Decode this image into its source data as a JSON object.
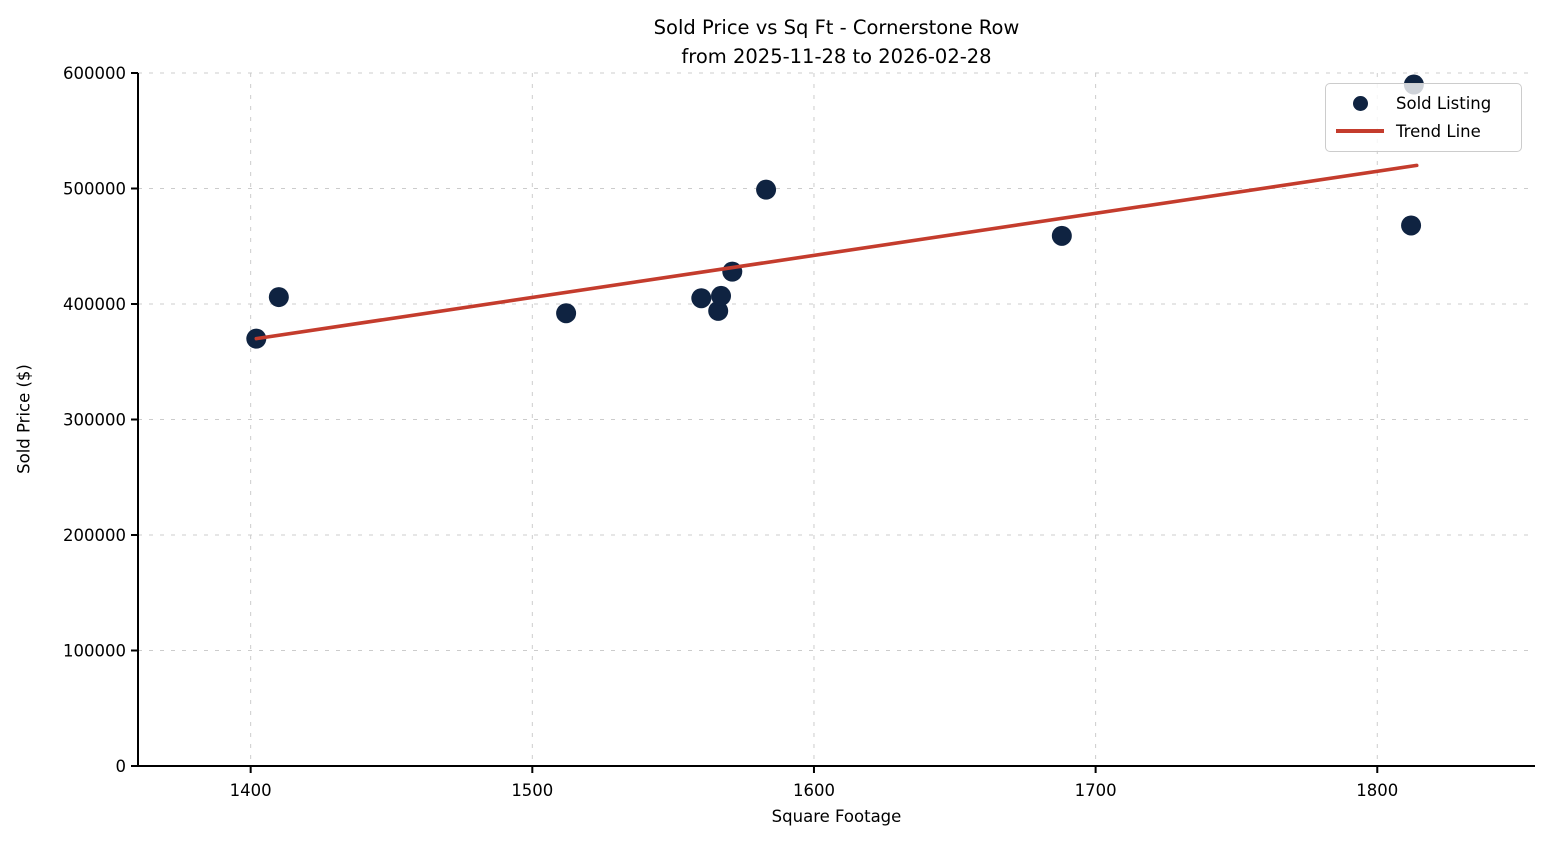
{
  "figure": {
    "title_line1": "Sold Price vs Sq Ft - Cornerstone Row",
    "title_line2": "from 2025-11-28 to 2026-02-28",
    "xlabel": "Square Footage",
    "ylabel": "Sold Price ($)"
  },
  "legend": {
    "position": "upper right",
    "items": [
      {
        "label": "Sold Listing",
        "swatch": "dot",
        "color": "#0f2341"
      },
      {
        "label": "Trend Line",
        "swatch": "line",
        "color": "#c43c2d"
      }
    ]
  },
  "chart_data": {
    "type": "scatter",
    "title": "Sold Price vs Sq Ft - Cornerstone Row\nfrom 2025-11-28 to 2026-02-28",
    "xlabel": "Square Footage",
    "ylabel": "Sold Price ($)",
    "xlim": [
      1360,
      1856
    ],
    "ylim": [
      0,
      600000
    ],
    "x_ticks": [
      1400,
      1500,
      1600,
      1700,
      1800
    ],
    "y_ticks": [
      0,
      100000,
      200000,
      300000,
      400000,
      500000,
      600000
    ],
    "grid": true,
    "grid_style": "dashed",
    "legend_position": "upper right",
    "colors": {
      "point": "#0f2341",
      "trend": "#c43c2d",
      "grid": "#cccccc",
      "spine": "#000000"
    },
    "series": [
      {
        "name": "Sold Listing",
        "kind": "scatter",
        "color": "#0f2341",
        "points": [
          {
            "sqft": 1402,
            "price": 370000
          },
          {
            "sqft": 1410,
            "price": 406000
          },
          {
            "sqft": 1512,
            "price": 392000
          },
          {
            "sqft": 1560,
            "price": 405000
          },
          {
            "sqft": 1566,
            "price": 394000
          },
          {
            "sqft": 1567,
            "price": 407000
          },
          {
            "sqft": 1571,
            "price": 428000
          },
          {
            "sqft": 1583,
            "price": 499000
          },
          {
            "sqft": 1688,
            "price": 459000
          },
          {
            "sqft": 1812,
            "price": 468000
          },
          {
            "sqft": 1813,
            "price": 590000
          }
        ]
      },
      {
        "name": "Trend Line",
        "kind": "line",
        "color": "#c43c2d",
        "points": [
          {
            "sqft": 1402,
            "price": 370000
          },
          {
            "sqft": 1814,
            "price": 520000
          }
        ]
      }
    ]
  }
}
